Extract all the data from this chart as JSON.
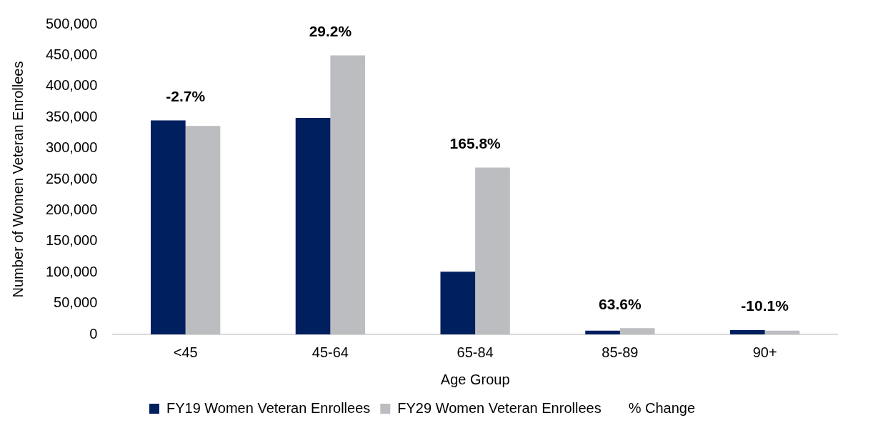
{
  "chart_data": {
    "type": "bar",
    "xlabel": "Age Group",
    "ylabel": "Number of Women Veteran Enrollees",
    "categories": [
      "<45",
      "45-64",
      "65-84",
      "85-89",
      "90+"
    ],
    "series": [
      {
        "name": "FY19 Women Veteran Enrollees",
        "color": "#001f5f",
        "values": [
          345000,
          349000,
          101000,
          6000,
          7000
        ]
      },
      {
        "name": "FY29 Women Veteran Enrollees",
        "color": "#bcbdc0",
        "values": [
          336000,
          450000,
          269000,
          10000,
          6000
        ]
      },
      {
        "name": "% Change",
        "type": "line",
        "values": [
          null,
          null,
          null,
          null,
          null
        ]
      }
    ],
    "annotations": [
      "-2.7%",
      "29.2%",
      "165.8%",
      "63.6%",
      "-10.1%"
    ],
    "ylim": [
      0,
      500000
    ],
    "yticks": [
      0,
      {
        "value": 50000,
        "label": "50,000"
      },
      {
        "value": 100000,
        "label": "100,000"
      },
      {
        "value": 150000,
        "label": "150,000"
      },
      {
        "value": 200000,
        "label": "200,000"
      },
      {
        "value": 250000,
        "label": "250,000"
      },
      {
        "value": 300000,
        "label": "300,000"
      },
      {
        "value": 350000,
        "label": "350,000"
      },
      {
        "value": 400000,
        "label": "400,000"
      },
      {
        "value": 450000,
        "label": "450,000"
      },
      {
        "value": 500000,
        "label": "500,000"
      }
    ],
    "grid": false,
    "legend": "bottom"
  }
}
